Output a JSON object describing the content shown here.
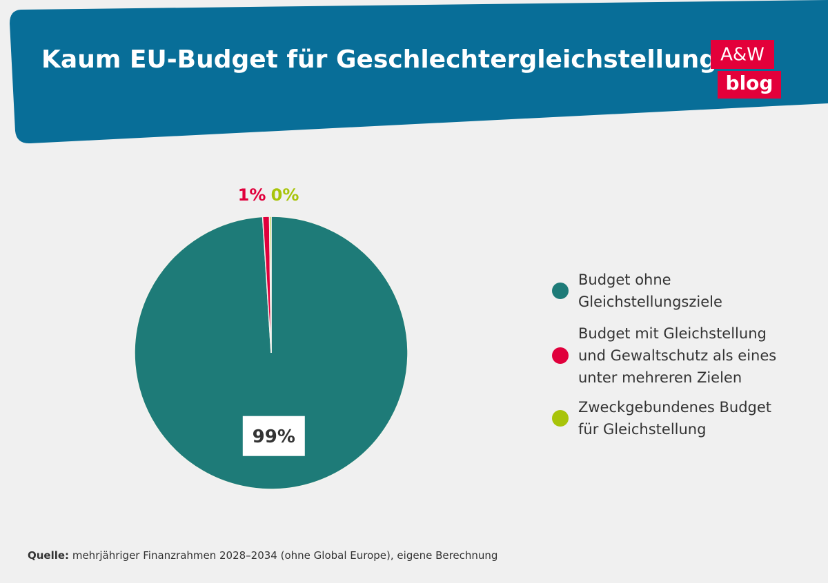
{
  "chart_data": {
    "type": "pie",
    "title": "Kaum EU-Budget für Geschlechtergleichstellung",
    "categories": [
      "Budget ohne Gleichstellungsziele",
      "Budget mit Gleichstellung und Gewaltschutz als eines unter mehreren Zielen",
      "Zweckgebundenes Budget für Gleichstellung"
    ],
    "values": [
      99,
      0.8,
      0.2
    ],
    "value_labels": [
      "99%",
      "1%",
      "0%"
    ],
    "colors": [
      "#1e7b78",
      "#e0003c",
      "#a8c40a"
    ]
  },
  "logo": {
    "top": "A&W",
    "bottom": "blog"
  },
  "source": {
    "label": "Quelle:",
    "text": "mehrjähriger Finanzrahmen 2028–2034 (ohne Global Europe), eigene Berechnung"
  }
}
